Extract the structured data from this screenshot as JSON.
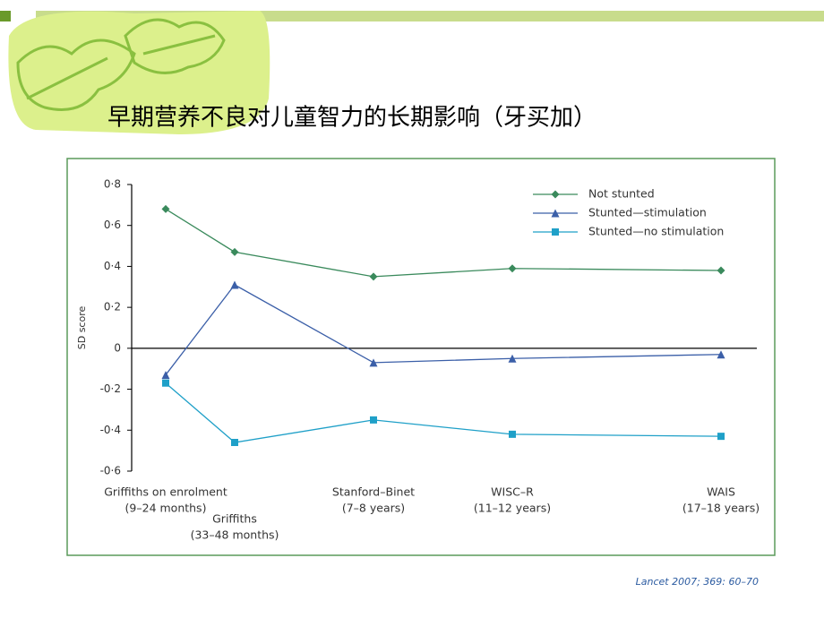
{
  "title": "早期营养不良对儿童智力的长期影响（牙买加）",
  "citation": "Lancet 2007; 369: 60–70",
  "chart_data": {
    "type": "line",
    "ylabel": "SD score",
    "categories": [
      "Griffiths on enrolment",
      "Griffiths",
      "Stanford–Binet",
      "WISC–R",
      "WAIS"
    ],
    "category_notes": [
      "(9–24 months)",
      "(33–48 months)",
      "(7–8 years)",
      "(11–12 years)",
      "(17–18 years)"
    ],
    "series": [
      {
        "name": "Not stunted",
        "color": "#3a8a5c",
        "marker": "diamond",
        "values": [
          0.68,
          0.47,
          0.35,
          0.39,
          0.38
        ]
      },
      {
        "name": "Stunted—stimulation",
        "color": "#3b5fa8",
        "marker": "triangle",
        "values": [
          -0.13,
          0.31,
          -0.07,
          -0.05,
          -0.03
        ]
      },
      {
        "name": "Stunted—no stimulation",
        "color": "#1fa0c8",
        "marker": "square",
        "values": [
          -0.17,
          -0.46,
          -0.35,
          -0.42,
          -0.43
        ]
      }
    ],
    "ylim": [
      -0.6,
      0.8
    ],
    "yticks": [
      {
        "value": -0.6,
        "label": "-0·6"
      },
      {
        "value": -0.4,
        "label": "-0·4"
      },
      {
        "value": -0.2,
        "label": "-0·2"
      },
      0,
      {
        "value": 0.2,
        "label": "0·2"
      },
      {
        "value": 0.4,
        "label": "0·4"
      },
      {
        "value": 0.6,
        "label": "0·6"
      },
      {
        "value": 0.8,
        "label": "0·8"
      }
    ],
    "legend": "upper right"
  }
}
